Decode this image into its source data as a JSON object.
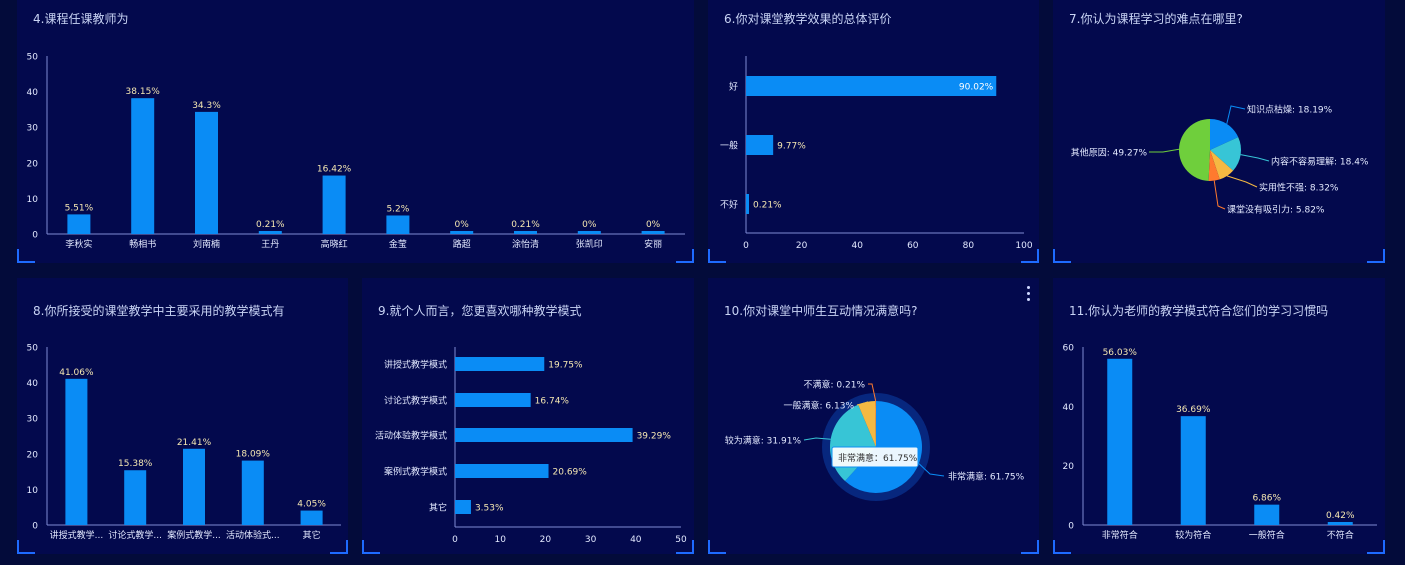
{
  "colors": {
    "bar": "#0a8cf5",
    "background": "#03094d",
    "axis": "#7f8bd4",
    "label": "#f5e7b2",
    "text": "#e3e9ff"
  },
  "panels": {
    "p4": {
      "title": "4.课程任课教师为"
    },
    "p6": {
      "title": "6.你对课堂教学效果的总体评价"
    },
    "p7": {
      "title": "7.你认为课程学习的难点在哪里?"
    },
    "p8": {
      "title": "8.你所接受的课堂教学中主要采用的教学模式有"
    },
    "p9": {
      "title": "9.就个人而言，您更喜欢哪种教学模式"
    },
    "p10": {
      "title": "10.你对课堂中师生互动情况满意吗?"
    },
    "p11": {
      "title": "11.你认为老师的教学模式符合您们的学习习惯吗"
    }
  },
  "chart_data": [
    {
      "id": "p4",
      "type": "bar",
      "categories": [
        "李秋实",
        "畅相书",
        "刘南楠",
        "王丹",
        "高晓红",
        "金莹",
        "路超",
        "涂怡清",
        "张凯印",
        "安丽"
      ],
      "values": [
        5.51,
        38.15,
        34.3,
        0.21,
        16.42,
        5.2,
        0,
        0.21,
        0,
        0
      ],
      "labels": [
        "5.51%",
        "38.15%",
        "34.3%",
        "0.21%",
        "16.42%",
        "5.2%",
        "0%",
        "0.21%",
        "0%",
        "0%"
      ],
      "ylim": [
        0,
        50
      ],
      "yticks": [
        0,
        10,
        20,
        30,
        40,
        50
      ]
    },
    {
      "id": "p6",
      "type": "bar",
      "orientation": "horizontal",
      "categories": [
        "好",
        "一般",
        "不好"
      ],
      "values": [
        90.02,
        9.77,
        0.21
      ],
      "labels": [
        "90.02%",
        "9.77%",
        "0.21%"
      ],
      "xlim": [
        0,
        100
      ],
      "xticks": [
        0,
        20,
        40,
        60,
        80,
        100
      ]
    },
    {
      "id": "p7",
      "type": "pie",
      "slices": [
        {
          "label": "知识点枯燥",
          "value": 18.19,
          "text": "知识点枯燥: 18.19%",
          "color": "#0a8cf5"
        },
        {
          "label": "内容不容易理解",
          "value": 18.4,
          "text": "内容不容易理解: 18.4%",
          "color": "#37c5d6"
        },
        {
          "label": "实用性不强",
          "value": 8.32,
          "text": "实用性不强: 8.32%",
          "color": "#f5b942"
        },
        {
          "label": "课堂没有吸引力",
          "value": 5.82,
          "text": "课堂没有吸引力: 5.82%",
          "color": "#ff7a2e"
        },
        {
          "label": "其他原因",
          "value": 49.27,
          "text": "其他原因: 49.27%",
          "color": "#6fcf3c"
        }
      ]
    },
    {
      "id": "p8",
      "type": "bar",
      "categories": [
        "讲授式教学...",
        "讨论式教学...",
        "案例式教学...",
        "活动体验式...",
        "其它"
      ],
      "values": [
        41.06,
        15.38,
        21.41,
        18.09,
        4.05
      ],
      "labels": [
        "41.06%",
        "15.38%",
        "21.41%",
        "18.09%",
        "4.05%"
      ],
      "ylim": [
        0,
        50
      ],
      "yticks": [
        0,
        10,
        20,
        30,
        40,
        50
      ]
    },
    {
      "id": "p9",
      "type": "bar",
      "orientation": "horizontal",
      "categories": [
        "讲授式教学模式",
        "讨论式教学模式",
        "活动体验教学模式",
        "案例式教学模式",
        "其它"
      ],
      "values": [
        19.75,
        16.74,
        39.29,
        20.69,
        3.53
      ],
      "labels": [
        "19.75%",
        "16.74%",
        "39.29%",
        "20.69%",
        "3.53%"
      ],
      "xlim": [
        0,
        50
      ],
      "xticks": [
        0,
        10,
        20,
        30,
        40,
        50
      ]
    },
    {
      "id": "p10",
      "type": "pie",
      "slices": [
        {
          "label": "非常满意",
          "value": 61.75,
          "text": "非常满意: 61.75%",
          "color": "#0a8cf5"
        },
        {
          "label": "较为满意",
          "value": 31.91,
          "text": "较为满意: 31.91%",
          "color": "#37c5d6"
        },
        {
          "label": "一般满意",
          "value": 6.13,
          "text": "一般满意: 6.13%",
          "color": "#f5b942"
        },
        {
          "label": "不满意",
          "value": 0.21,
          "text": "不满意: 0.21%",
          "color": "#ff7a2e"
        }
      ],
      "tooltip": {
        "name": "非常满意",
        "value": "61.75%"
      }
    },
    {
      "id": "p11",
      "type": "bar",
      "categories": [
        "非常符合",
        "较为符合",
        "一般符合",
        "不符合"
      ],
      "values": [
        56.03,
        36.69,
        6.86,
        0.42
      ],
      "labels": [
        "56.03%",
        "36.69%",
        "6.86%",
        "0.42%"
      ],
      "ylim": [
        0,
        60
      ],
      "yticks": [
        0,
        20,
        40,
        60
      ]
    }
  ]
}
